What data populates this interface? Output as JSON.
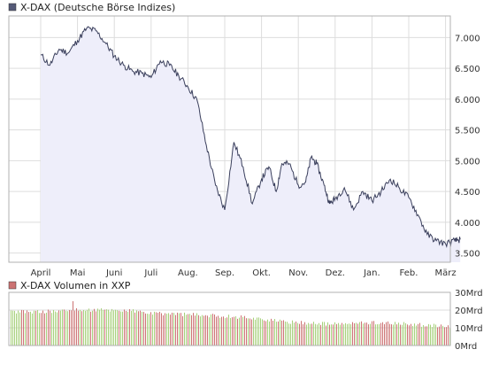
{
  "chart_data": [
    {
      "type": "area",
      "legend": "X-DAX (Deutsche Börse Indizes)",
      "colors": {
        "line": "#3a3f5c",
        "fill": "#eeeefa",
        "grid": "#dddddd",
        "legend_swatch": "#555a78"
      },
      "x_labels": [
        "April",
        "Mai",
        "Juni",
        "Juli",
        "Aug.",
        "Sep.",
        "Okt.",
        "Nov.",
        "Dez.",
        "Jan.",
        "Feb.",
        "März"
      ],
      "y_ticks": [
        3500,
        4000,
        4500,
        5000,
        5500,
        6000,
        6500,
        7000
      ],
      "y_tick_labels": [
        "3.500",
        "4.000",
        "4.500",
        "5.000",
        "5.500",
        "6.000",
        "6.500",
        "7.000"
      ],
      "ylim": [
        3350,
        7350
      ],
      "grid": true,
      "x": [
        0.0,
        0.25,
        0.5,
        0.75,
        1.0,
        1.25,
        1.5,
        1.75,
        2.0,
        2.25,
        2.5,
        2.75,
        3.0,
        3.25,
        3.5,
        3.75,
        4.0,
        4.25,
        4.5,
        4.75,
        5.0,
        5.25,
        5.5,
        5.75,
        6.0,
        6.2,
        6.4,
        6.55,
        6.75,
        7.0,
        7.2,
        7.35,
        7.5,
        7.7,
        7.85,
        8.0,
        8.25,
        8.5,
        8.75,
        9.0,
        9.25,
        9.5,
        9.75,
        10.0,
        10.25,
        10.5,
        10.75,
        11.0,
        11.25,
        11.4
      ],
      "values": [
        6720,
        6550,
        6810,
        6750,
        6950,
        7150,
        7110,
        6920,
        6700,
        6550,
        6450,
        6420,
        6350,
        6620,
        6550,
        6380,
        6200,
        5980,
        5250,
        4600,
        4200,
        5300,
        4900,
        4300,
        4700,
        4900,
        4500,
        4950,
        4950,
        4600,
        4650,
        5060,
        4950,
        4600,
        4300,
        4380,
        4560,
        4200,
        4500,
        4350,
        4500,
        4700,
        4550,
        4400,
        4120,
        3800,
        3700,
        3650,
        3700,
        3720
      ]
    },
    {
      "type": "bar",
      "legend": "X-DAX Volumen in XXP",
      "colors": {
        "up": "#a6d07a",
        "down": "#cc7373",
        "legend_swatch": "#cc7373"
      },
      "y_ticks": [
        0,
        10,
        20,
        30
      ],
      "y_tick_labels": [
        "0Mrd",
        "10Mrd",
        "20Mrd",
        "30Mrd"
      ],
      "ylim": [
        0,
        30
      ],
      "grid": true,
      "x": [
        0.0,
        0.5,
        1.0,
        1.5,
        2.0,
        2.5,
        3.0,
        3.5,
        4.0,
        4.5,
        5.0,
        5.5,
        6.0,
        6.5,
        7.0,
        7.5,
        8.0,
        8.5,
        9.0,
        9.5,
        10.0,
        10.5,
        11.0,
        11.4
      ],
      "values": [
        19,
        19.5,
        20,
        20,
        20,
        19.5,
        18,
        18,
        17.5,
        17,
        16.5,
        16,
        15,
        13.5,
        13,
        12.5,
        12,
        12.5,
        13,
        12.5,
        12,
        11.5,
        10.5,
        10
      ],
      "spike": {
        "x": 0.85,
        "value": 25
      }
    }
  ]
}
